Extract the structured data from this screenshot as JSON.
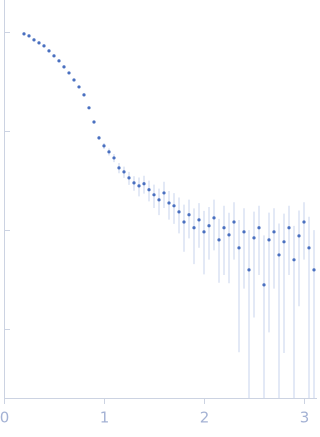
{
  "chart_data": {
    "type": "scatter",
    "x": [
      0.2,
      0.25,
      0.3,
      0.35,
      0.4,
      0.45,
      0.5,
      0.55,
      0.6,
      0.65,
      0.7,
      0.75,
      0.8,
      0.85,
      0.9,
      0.95,
      1.0,
      1.05,
      1.1,
      1.15,
      1.2,
      1.25,
      1.3,
      1.35,
      1.4,
      1.45,
      1.5,
      1.55,
      1.6,
      1.65,
      1.7,
      1.75,
      1.8,
      1.85,
      1.9,
      1.95,
      2.0,
      2.05,
      2.1,
      2.15,
      2.2,
      2.25,
      2.3,
      2.35,
      2.4,
      2.45,
      2.5,
      2.55,
      2.6,
      2.65,
      2.7,
      2.75,
      2.8,
      2.85,
      2.9,
      2.95,
      3.0,
      3.05,
      3.1
    ],
    "values": [
      0.955,
      0.912,
      0.83,
      0.774,
      0.722,
      0.643,
      0.573,
      0.51,
      0.443,
      0.385,
      0.327,
      0.278,
      0.231,
      0.171,
      0.123,
      0.085,
      0.0705,
      0.0614,
      0.0533,
      0.0423,
      0.0385,
      0.0335,
      0.0298,
      0.0278,
      0.0292,
      0.0254,
      0.0226,
      0.0201,
      0.0236,
      0.0187,
      0.0175,
      0.0152,
      0.012,
      0.0142,
      0.0105,
      0.0126,
      0.00955,
      0.011,
      0.0132,
      0.00792,
      0.0105,
      0.00889,
      0.012,
      0.00658,
      0.00955,
      0.00394,
      0.0083,
      0.0105,
      0.00278,
      0.00792,
      0.00955,
      0.00558,
      0.00757,
      0.0105,
      0.00498,
      0.00869,
      0.012,
      0.00658,
      0.00394
    ],
    "errors": [
      0.01,
      0.01,
      0.01,
      0.01,
      0.01,
      0.01,
      0.01,
      0.01,
      0.008,
      0.007,
      0.006,
      0.005,
      0.005,
      0.005,
      0.004,
      0.004,
      0.005,
      0.005,
      0.005,
      0.005,
      0.005,
      0.005,
      0.005,
      0.006,
      0.006,
      0.006,
      0.006,
      0.006,
      0.007,
      0.006,
      0.006,
      0.006,
      0.006,
      0.006,
      0.006,
      0.006,
      0.006,
      0.006,
      0.007,
      0.005,
      0.007,
      0.006,
      0.007,
      0.006,
      0.007,
      0.006,
      0.007,
      0.007,
      0.006,
      0.007,
      0.007,
      0.006,
      0.007,
      0.007,
      0.006,
      0.007,
      0.007,
      0.007,
      0.006
    ],
    "color": "#4a70c0",
    "error_color": "#b9c8e8",
    "xlim": [
      0,
      3.13
    ],
    "xticks": [
      0,
      1,
      2,
      3
    ],
    "ylim": [
      0.0002,
      2.1
    ],
    "yticks": [
      0.001,
      0.01,
      0.1,
      1
    ],
    "log_y": true
  }
}
